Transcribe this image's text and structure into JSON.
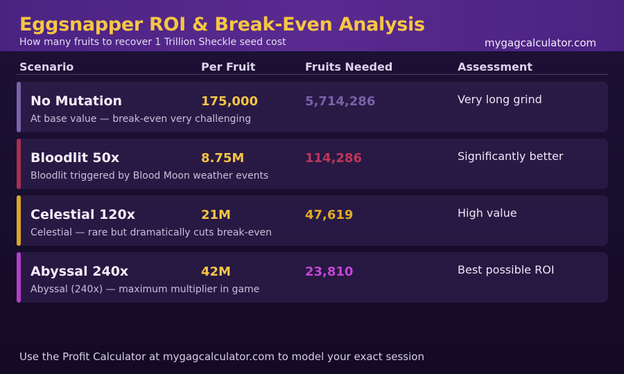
{
  "header": {
    "title": "Eggsnapper ROI & Break-Even Analysis",
    "subtitle": "How many fruits to recover 1 Trillion Sheckle seed cost",
    "site": "mygagcalculator.com"
  },
  "columns": {
    "scenario": "Scenario",
    "per_fruit": "Per Fruit",
    "fruits_needed": "Fruits Needed",
    "assessment": "Assessment"
  },
  "rows": [
    {
      "name": "No Mutation",
      "description": "At base value — break-even very challenging",
      "per_fruit": "175,000",
      "fruits_needed": "5,714,286",
      "assessment": "Very long grind",
      "accent": "#7a62a8",
      "needed_color": "#7a62a8"
    },
    {
      "name": "Bloodlit 50x",
      "description": "Bloodlit triggered by Blood Moon weather events",
      "per_fruit": "8.75M",
      "fruits_needed": "114,286",
      "assessment": "Significantly better",
      "accent": "#a8304f",
      "needed_color": "#c0365a"
    },
    {
      "name": "Celestial 120x",
      "description": "Celestial — rare but dramatically cuts break-even",
      "per_fruit": "21M",
      "fruits_needed": "47,619",
      "assessment": "High value",
      "accent": "#d9a827",
      "needed_color": "#e1ab26"
    },
    {
      "name": "Abyssal 240x",
      "description": "Abyssal (240x) — maximum multiplier in game",
      "per_fruit": "42M",
      "fruits_needed": "23,810",
      "assessment": "Best possible ROI",
      "accent": "#b43fc9",
      "needed_color": "#c446d6"
    }
  ],
  "footer": "Use the Profit Calculator at mygagcalculator.com to model your exact session"
}
